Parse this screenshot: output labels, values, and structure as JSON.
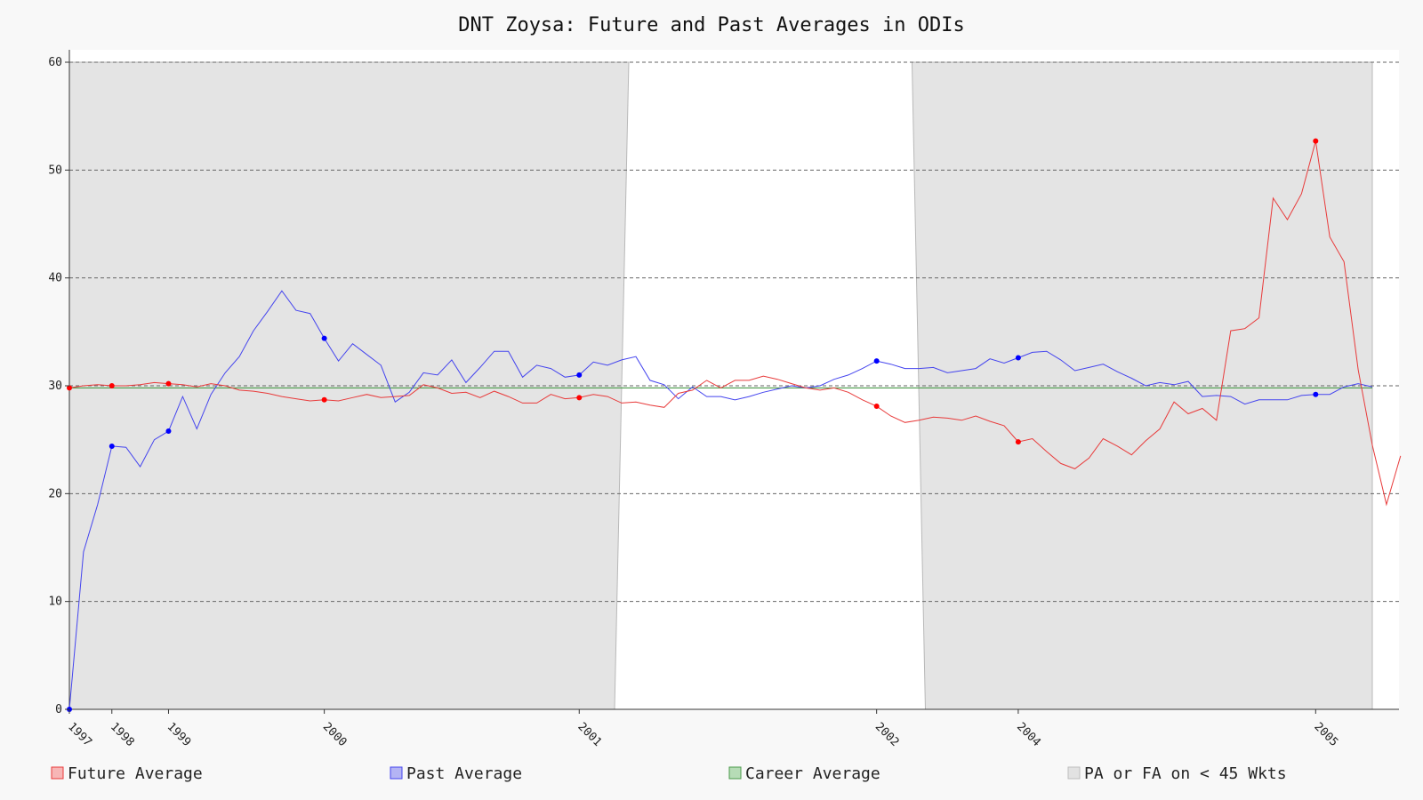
{
  "chart_data": {
    "type": "line",
    "title": "DNT Zoysa: Future and Past Averages in ODIs",
    "xlabel": "",
    "ylabel": "",
    "ylim": [
      0,
      60
    ],
    "y_ticks": [
      0,
      10,
      20,
      30,
      40,
      50,
      60
    ],
    "grid": true,
    "legend_placement": "bottom",
    "x_tick_labels": [
      {
        "label": "1997",
        "index": 0
      },
      {
        "label": "1998",
        "index": 3
      },
      {
        "label": "1999",
        "index": 7
      },
      {
        "label": "2000",
        "index": 18
      },
      {
        "label": "2001",
        "index": 36
      },
      {
        "label": "2002",
        "index": 57
      },
      {
        "label": "2004",
        "index": 67
      },
      {
        "label": "2005",
        "index": 88
      }
    ],
    "n_points": 93,
    "shaded_regions": [
      {
        "from_index": 0,
        "to_index": 39.5
      },
      {
        "from_index": 59.5,
        "to_index": 92
      }
    ],
    "series": [
      {
        "name": "Future Average",
        "color": "#e83a3a",
        "values": [
          29.8,
          30.0,
          30.1,
          30.0,
          30.0,
          30.1,
          30.3,
          30.2,
          30.1,
          29.9,
          30.2,
          30.0,
          29.6,
          29.5,
          29.3,
          29.0,
          28.8,
          28.6,
          28.7,
          28.6,
          28.9,
          29.2,
          28.9,
          29.0,
          29.1,
          30.1,
          29.8,
          29.3,
          29.4,
          28.9,
          29.5,
          29.0,
          28.4,
          28.4,
          29.2,
          28.8,
          28.9,
          29.2,
          29.0,
          28.4,
          28.5,
          28.2,
          28.0,
          29.3,
          29.6,
          30.5,
          29.8,
          30.5,
          30.5,
          30.9,
          30.6,
          30.2,
          29.8,
          29.6,
          29.8,
          29.4,
          28.7,
          28.1,
          27.2,
          26.6,
          26.8,
          27.1,
          27.0,
          26.8,
          27.2,
          26.7,
          26.3,
          24.8,
          25.1,
          23.9,
          22.8,
          22.3,
          23.3,
          25.1,
          24.4,
          23.6,
          24.9,
          26.0,
          28.5,
          27.4,
          27.9,
          26.8,
          35.1,
          35.3,
          36.3,
          47.4,
          45.4,
          47.8,
          52.7,
          43.8,
          41.5,
          31.5,
          24.5,
          19.0,
          23.5
        ]
      },
      {
        "name": "Past Average",
        "color": "#4444ee",
        "values": [
          0.0,
          14.6,
          19.0,
          24.4,
          24.3,
          22.5,
          25.0,
          25.8,
          29.0,
          26.0,
          29.2,
          31.2,
          32.7,
          35.1,
          36.9,
          38.8,
          37.0,
          36.7,
          34.4,
          32.3,
          33.9,
          32.9,
          31.9,
          28.5,
          29.4,
          31.2,
          31.0,
          32.4,
          30.3,
          31.7,
          33.2,
          33.2,
          30.8,
          31.9,
          31.6,
          30.8,
          31.0,
          32.2,
          31.9,
          32.4,
          32.7,
          30.5,
          30.1,
          28.8,
          29.9,
          29.0,
          29.0,
          28.7,
          29.0,
          29.4,
          29.7,
          30.0,
          29.8,
          30.0,
          30.6,
          31.0,
          31.6,
          32.3,
          32.0,
          31.6,
          31.6,
          31.7,
          31.2,
          31.4,
          31.6,
          32.5,
          32.1,
          32.6,
          33.1,
          33.2,
          32.4,
          31.4,
          31.7,
          32.0,
          31.3,
          30.7,
          30.0,
          30.3,
          30.1,
          30.4,
          29.0,
          29.1,
          29.0,
          28.3,
          28.7,
          28.7,
          28.7,
          29.1,
          29.2,
          29.2,
          29.9,
          30.2,
          29.9
        ]
      },
      {
        "name": "Career Average",
        "color": "#4a9a4a",
        "values": [
          29.8
        ]
      },
      {
        "name": "PA or FA on < 45 Wkts",
        "color": "#d3d3d3",
        "values": []
      }
    ],
    "highlight_points": [
      0,
      3,
      7,
      18,
      36,
      57,
      67,
      88
    ]
  }
}
